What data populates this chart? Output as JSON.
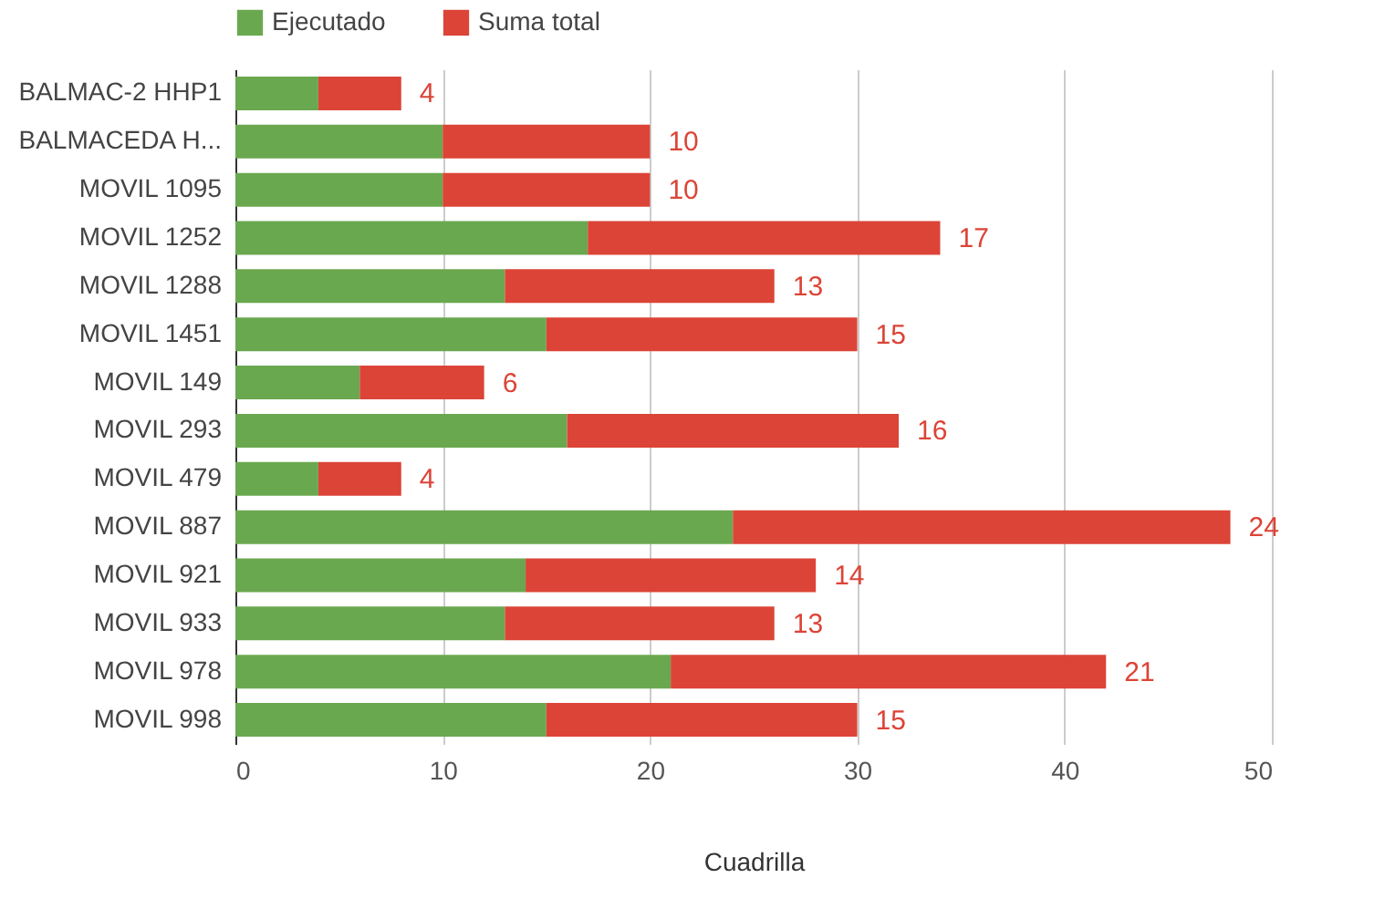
{
  "chart_data": {
    "type": "bar",
    "orientation": "horizontal",
    "stacked": true,
    "xlabel": "Cuadrilla",
    "categories": [
      "BALMAC-2 HHP1",
      "BALMACEDA H...",
      "MOVIL 1095",
      "MOVIL 1252",
      "MOVIL 1288",
      "MOVIL 1451",
      "MOVIL 149",
      "MOVIL 293",
      "MOVIL 479",
      "MOVIL 887",
      "MOVIL 921",
      "MOVIL 933",
      "MOVIL 978",
      "MOVIL 998"
    ],
    "series": [
      {
        "name": "Ejecutado",
        "color": "#6aa84f",
        "values": [
          4,
          10,
          10,
          17,
          13,
          15,
          6,
          16,
          4,
          24,
          14,
          13,
          21,
          15
        ]
      },
      {
        "name": "Suma total",
        "color": "#dc4437",
        "values": [
          4,
          10,
          10,
          17,
          13,
          15,
          6,
          16,
          4,
          24,
          14,
          13,
          21,
          15
        ],
        "value_labels": [
          "4",
          "10",
          "10",
          "17",
          "13",
          "15",
          "6",
          "16",
          "4",
          "24",
          "14",
          "13",
          "21",
          "15"
        ]
      }
    ],
    "xlim": [
      0,
      50
    ],
    "xticks": [
      0,
      10,
      20,
      30,
      40,
      50
    ],
    "grid": "x",
    "legend": "top"
  }
}
